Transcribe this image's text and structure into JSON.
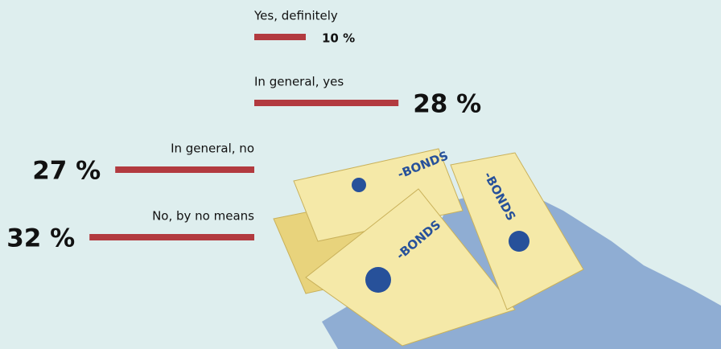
{
  "chart_data": {
    "type": "bar",
    "categories": [
      "Yes, definitely",
      "In general, yes",
      "In general, no",
      "No, by no means"
    ],
    "values": [
      10,
      28,
      27,
      32
    ],
    "value_labels": [
      "10 %",
      "28 %",
      "27 %",
      "32 %"
    ],
    "color": "#b23a3f",
    "illustration_text": "-BONDS"
  }
}
